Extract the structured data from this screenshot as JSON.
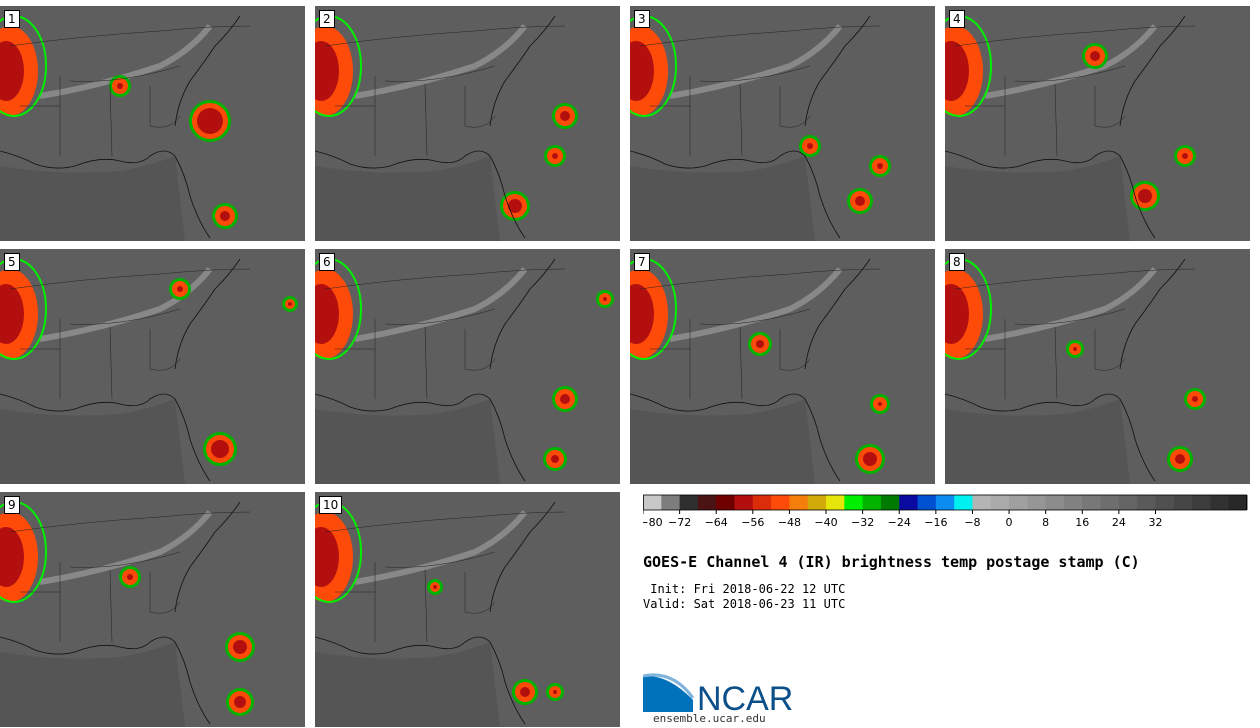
{
  "panels": [
    "1",
    "2",
    "3",
    "4",
    "5",
    "6",
    "7",
    "8",
    "9",
    "10"
  ],
  "colorbar": {
    "colors": [
      "#c8c8c8",
      "#7d7d7d",
      "#2f2f2f",
      "#4a1414",
      "#6e0000",
      "#b40f0f",
      "#dc2d0a",
      "#ff4b0a",
      "#f57d0a",
      "#d2aa0a",
      "#e6e60a",
      "#00f000",
      "#00b400",
      "#007a00",
      "#0a0aa0",
      "#0050d2",
      "#0a8cf0",
      "#00f0f0",
      "#b4b4b4",
      "#aaaaaa",
      "#a0a0a0",
      "#969696",
      "#8c8c8c",
      "#828282",
      "#787878",
      "#6e6e6e",
      "#646464",
      "#5a5a5a",
      "#505050",
      "#464646",
      "#3c3c3c",
      "#323232",
      "#282828"
    ],
    "ticks": [
      "−80",
      "−72",
      "−64",
      "−56",
      "−48",
      "−40",
      "−32",
      "−24",
      "−16",
      "−8",
      "0",
      "8",
      "16",
      "24",
      "32"
    ]
  },
  "title": "GOES-E Channel 4 (IR) brightness temp postage stamp (C)",
  "init": " Init: Fri 2018-06-22 12 UTC",
  "valid": "Valid: Sat 2018-06-23 11 UTC",
  "logo_text": "NCAR",
  "logo_url": "ensemble.ucar.edu"
}
